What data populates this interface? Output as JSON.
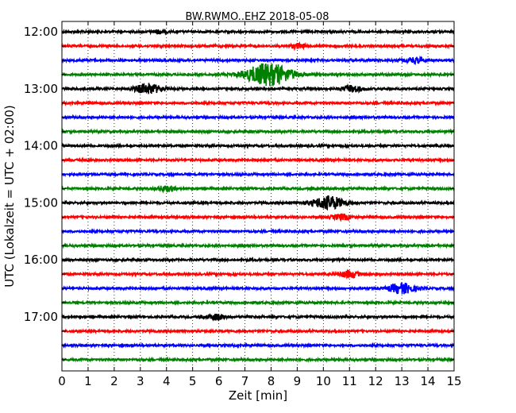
{
  "chart_data": {
    "type": "line",
    "title": "BW.RWMO..EHZ 2018-05-08",
    "xlabel": "Zeit  [min]",
    "ylabel": "UTC (Lokalzeit = UTC + 02:00)",
    "xlim": [
      0,
      15
    ],
    "x_ticks": [
      0,
      1,
      2,
      3,
      4,
      5,
      6,
      7,
      8,
      9,
      10,
      11,
      12,
      13,
      14,
      15
    ],
    "x_tick_labels": [
      "0",
      "1",
      "2",
      "3",
      "4",
      "5",
      "6",
      "7",
      "8",
      "9",
      "10",
      "11",
      "12",
      "13",
      "14",
      "15"
    ],
    "grid": "vertical dotted",
    "row_interval_minutes": 15,
    "color_cycle": [
      "#000000",
      "#ff0000",
      "#0000ff",
      "#008000"
    ],
    "rows": [
      {
        "start": "12:00",
        "label": "12:00",
        "color": "#000000"
      },
      {
        "start": "12:15",
        "label": "",
        "color": "#ff0000"
      },
      {
        "start": "12:30",
        "label": "",
        "color": "#0000ff"
      },
      {
        "start": "12:45",
        "label": "",
        "color": "#008000"
      },
      {
        "start": "13:00",
        "label": "13:00",
        "color": "#000000"
      },
      {
        "start": "13:15",
        "label": "",
        "color": "#ff0000"
      },
      {
        "start": "13:30",
        "label": "",
        "color": "#0000ff"
      },
      {
        "start": "13:45",
        "label": "",
        "color": "#008000"
      },
      {
        "start": "14:00",
        "label": "14:00",
        "color": "#000000"
      },
      {
        "start": "14:15",
        "label": "",
        "color": "#ff0000"
      },
      {
        "start": "14:30",
        "label": "",
        "color": "#0000ff"
      },
      {
        "start": "14:45",
        "label": "",
        "color": "#008000"
      },
      {
        "start": "15:00",
        "label": "15:00",
        "color": "#000000"
      },
      {
        "start": "15:15",
        "label": "",
        "color": "#ff0000"
      },
      {
        "start": "15:30",
        "label": "",
        "color": "#0000ff"
      },
      {
        "start": "15:45",
        "label": "",
        "color": "#008000"
      },
      {
        "start": "16:00",
        "label": "16:00",
        "color": "#000000"
      },
      {
        "start": "16:15",
        "label": "",
        "color": "#ff0000"
      },
      {
        "start": "16:30",
        "label": "",
        "color": "#0000ff"
      },
      {
        "start": "16:45",
        "label": "",
        "color": "#008000"
      },
      {
        "start": "17:00",
        "label": "17:00",
        "color": "#000000"
      },
      {
        "start": "17:15",
        "label": "",
        "color": "#ff0000"
      },
      {
        "start": "17:30",
        "label": "",
        "color": "#0000ff"
      },
      {
        "start": "17:45",
        "label": "",
        "color": "#008000"
      }
    ],
    "events": [
      {
        "row": 0,
        "minute": 3.7,
        "amp": 0.15
      },
      {
        "row": 1,
        "minute": 9.0,
        "amp": 0.2
      },
      {
        "row": 2,
        "minute": 13.5,
        "amp": 0.25
      },
      {
        "row": 3,
        "minute": 7.9,
        "amp": 1.0
      },
      {
        "row": 4,
        "minute": 3.3,
        "amp": 0.45
      },
      {
        "row": 4,
        "minute": 11.1,
        "amp": 0.3
      },
      {
        "row": 11,
        "minute": 4.0,
        "amp": 0.25
      },
      {
        "row": 12,
        "minute": 10.2,
        "amp": 0.6
      },
      {
        "row": 13,
        "minute": 10.7,
        "amp": 0.25
      },
      {
        "row": 17,
        "minute": 11.0,
        "amp": 0.3
      },
      {
        "row": 18,
        "minute": 13.0,
        "amp": 0.45
      },
      {
        "row": 20,
        "minute": 5.9,
        "amp": 0.25
      }
    ]
  }
}
